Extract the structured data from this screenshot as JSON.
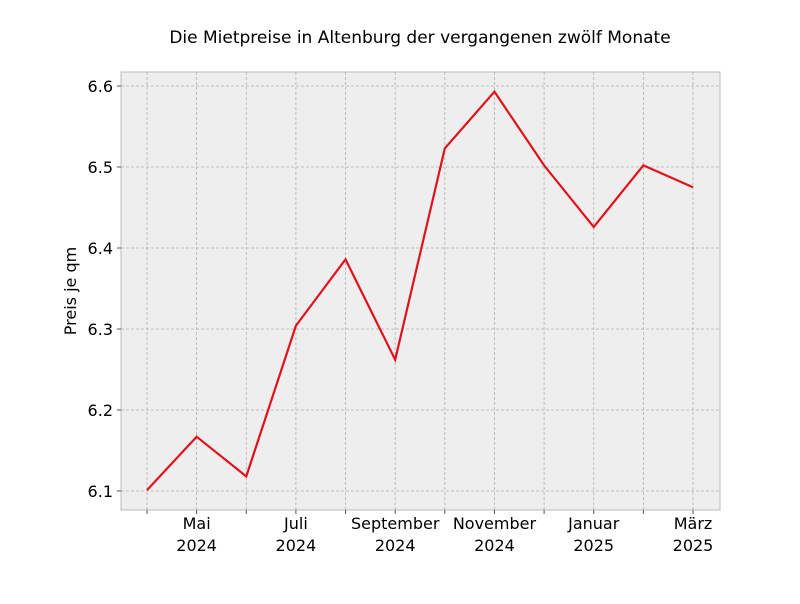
{
  "chart_data": {
    "type": "line",
    "title": "Die Mietpreise in Altenburg der vergangenen zwölf Monate",
    "y_label": "Preis je qm",
    "categories": [
      null,
      [
        "Mai",
        "2024"
      ],
      null,
      [
        "Juli",
        "2024"
      ],
      null,
      [
        "September",
        "2024"
      ],
      null,
      [
        "November",
        "2024"
      ],
      null,
      [
        "Januar",
        "2025"
      ],
      null,
      [
        "März",
        "2025"
      ]
    ],
    "series": [
      {
        "color": "#e0121c",
        "values": [
          6.101,
          6.167,
          6.118,
          6.304,
          6.386,
          6.262,
          6.523,
          6.593,
          6.502,
          6.426,
          6.502,
          6.475
        ]
      }
    ],
    "ylim": [
      6.0765,
      6.6173
    ],
    "yticks": [
      6.1,
      6.2,
      6.3,
      6.4,
      6.5,
      6.6
    ],
    "grid": true
  }
}
